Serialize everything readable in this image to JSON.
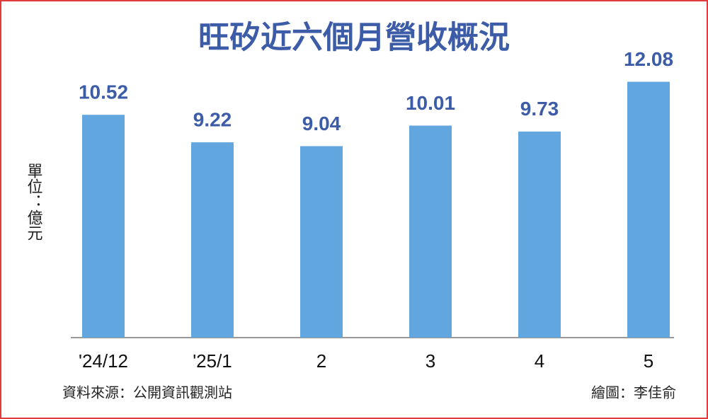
{
  "chart_data": {
    "type": "bar",
    "title": "旺矽近六個月營收概況",
    "y_label": "單位：億元",
    "categories": [
      "'24/12",
      "'25/1",
      "2",
      "3",
      "4",
      "5"
    ],
    "values": [
      10.52,
      9.22,
      9.04,
      10.01,
      9.73,
      12.08
    ],
    "color": "#61a6de",
    "ylim": [
      0,
      13
    ],
    "source": "資料來源：公開資訊觀測站",
    "credit": "繪圖：李佳俞"
  }
}
